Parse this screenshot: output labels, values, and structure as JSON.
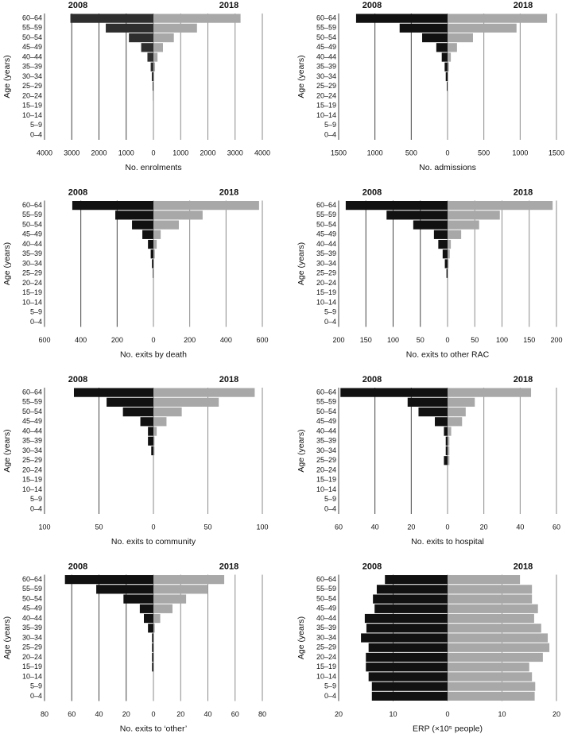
{
  "chart_data": [
    {
      "type": "pyramid",
      "xlabel": "No. enrolments",
      "ylabel": "Age (years)",
      "categories": [
        "60–64",
        "55–59",
        "50–54",
        "45–49",
        "40–44",
        "35–39",
        "30–34",
        "25–29",
        "20–24",
        "15–19",
        "10–14",
        "5–9",
        "0–4"
      ],
      "series": [
        {
          "name": "2008",
          "color": "#2e2e2e",
          "values": [
            3050,
            1750,
            900,
            450,
            220,
            100,
            60,
            30,
            10,
            0,
            0,
            0,
            0
          ]
        },
        {
          "name": "2018",
          "color": "#a8a8a8",
          "values": [
            3200,
            1600,
            750,
            350,
            150,
            60,
            30,
            15,
            5,
            0,
            0,
            0,
            0
          ]
        }
      ],
      "xlim": [
        -4000,
        4000
      ],
      "xticks": [
        {
          "value": -4000,
          "label": "4000"
        },
        {
          "value": -3000,
          "label": "3000"
        },
        {
          "value": -2000,
          "label": "2000"
        },
        {
          "value": -1000,
          "label": "1000"
        },
        0,
        1000,
        2000,
        3000,
        4000
      ],
      "grid": true
    },
    {
      "type": "pyramid",
      "xlabel": "No. admissions",
      "ylabel": "Age (years)",
      "categories": [
        "60–64",
        "55–59",
        "50–54",
        "45–49",
        "40–44",
        "35–39",
        "30–34",
        "25–29",
        "20–24",
        "15–19",
        "10–14",
        "5–9",
        "0–4"
      ],
      "series": [
        {
          "name": "2008",
          "color": "#111111",
          "values": [
            1260,
            660,
            350,
            155,
            80,
            40,
            25,
            10,
            0,
            0,
            0,
            0,
            0
          ]
        },
        {
          "name": "2018",
          "color": "#a8a8a8",
          "values": [
            1370,
            950,
            350,
            130,
            45,
            20,
            10,
            5,
            0,
            0,
            0,
            0,
            0
          ]
        }
      ],
      "xlim": [
        -1500,
        1500
      ],
      "xticks": [
        {
          "value": -1500,
          "label": "1500"
        },
        {
          "value": -1000,
          "label": "1000"
        },
        {
          "value": -500,
          "label": "500"
        },
        0,
        500,
        1000,
        1500
      ],
      "grid": true
    },
    {
      "type": "pyramid",
      "xlabel": "No. exits by death",
      "ylabel": "Age (years)",
      "categories": [
        "60–64",
        "55–59",
        "50–54",
        "45–49",
        "40–44",
        "35–39",
        "30–34",
        "25–29",
        "20–24",
        "15–19",
        "10–14",
        "5–9",
        "0–4"
      ],
      "series": [
        {
          "name": "2008",
          "color": "#111111",
          "values": [
            447,
            210,
            118,
            61,
            30,
            15,
            8,
            3,
            0,
            0,
            0,
            0,
            0
          ]
        },
        {
          "name": "2018",
          "color": "#a8a8a8",
          "values": [
            582,
            271,
            140,
            40,
            18,
            8,
            3,
            0,
            0,
            0,
            0,
            0,
            0
          ]
        }
      ],
      "xlim": [
        -600,
        600
      ],
      "xticks": [
        {
          "value": -600,
          "label": "600"
        },
        {
          "value": -400,
          "label": "400"
        },
        {
          "value": -200,
          "label": "200"
        },
        0,
        200,
        400,
        600
      ],
      "grid": true
    },
    {
      "type": "pyramid",
      "xlabel": "No. exits to other RAC",
      "ylabel": "Age (years)",
      "categories": [
        "60–64",
        "55–59",
        "50–54",
        "45–49",
        "40–44",
        "35–39",
        "30–34",
        "25–29",
        "20–24",
        "15–19",
        "10–14",
        "5–9",
        "0–4"
      ],
      "series": [
        {
          "name": "2008",
          "color": "#111111",
          "values": [
            187,
            112,
            63,
            25,
            17,
            9,
            5,
            2,
            0,
            0,
            0,
            0,
            0
          ]
        },
        {
          "name": "2018",
          "color": "#a8a8a8",
          "values": [
            193,
            96,
            58,
            25,
            6,
            4,
            2,
            0,
            0,
            0,
            0,
            0,
            0
          ]
        }
      ],
      "xlim": [
        -200,
        200
      ],
      "xticks": [
        {
          "value": -200,
          "label": "200"
        },
        {
          "value": -150,
          "label": "150"
        },
        {
          "value": -100,
          "label": "100"
        },
        {
          "value": -50,
          "label": "50"
        },
        0,
        50,
        100,
        150,
        200
      ],
      "grid": true
    },
    {
      "type": "pyramid",
      "xlabel": "No. exits to community",
      "ylabel": "Age (years)",
      "categories": [
        "60–64",
        "55–59",
        "50–54",
        "45–49",
        "40–44",
        "35–39",
        "30–34",
        "25–29",
        "20–24",
        "15–19",
        "10–14",
        "5–9",
        "0–4"
      ],
      "series": [
        {
          "name": "2008",
          "color": "#111111",
          "values": [
            73,
            43,
            28,
            12,
            5,
            5,
            2,
            0,
            0,
            0,
            0,
            0,
            0
          ]
        },
        {
          "name": "2018",
          "color": "#a8a8a8",
          "values": [
            93,
            60,
            26,
            12,
            3,
            1,
            1,
            0,
            0,
            0,
            0,
            0,
            0
          ]
        }
      ],
      "xlim": [
        -100,
        100
      ],
      "xticks": [
        {
          "value": -100,
          "label": "100"
        },
        {
          "value": -50,
          "label": "50"
        },
        0,
        50,
        100
      ],
      "grid": true
    },
    {
      "type": "pyramid",
      "xlabel": "No. exits to hospital",
      "ylabel": "Age (years)",
      "categories": [
        "60–64",
        "55–59",
        "50–54",
        "45–49",
        "40–44",
        "35–39",
        "30–34",
        "25–29",
        "20–24",
        "15–19",
        "10–14",
        "5–9",
        "0–4"
      ],
      "series": [
        {
          "name": "2008",
          "color": "#111111",
          "values": [
            59,
            22,
            16,
            7,
            2,
            1,
            1,
            2,
            0,
            0,
            0,
            0,
            0
          ]
        },
        {
          "name": "2018",
          "color": "#a8a8a8",
          "values": [
            46,
            15,
            10,
            8,
            2,
            1,
            1,
            1,
            0,
            0,
            0,
            0,
            0
          ]
        }
      ],
      "xlim": [
        -60,
        60
      ],
      "xticks": [
        {
          "value": -60,
          "label": "60"
        },
        {
          "value": -40,
          "label": "40"
        },
        {
          "value": -20,
          "label": "20"
        },
        0,
        20,
        40,
        60
      ],
      "grid": true
    },
    {
      "type": "pyramid",
      "xlabel": "No. exits to ‘other’",
      "ylabel": "Age (years)",
      "categories": [
        "60–64",
        "55–59",
        "50–54",
        "45–49",
        "40–44",
        "35–39",
        "30–34",
        "25–29",
        "20–24",
        "15–19",
        "10–14",
        "5–9",
        "0–4"
      ],
      "series": [
        {
          "name": "2008",
          "color": "#111111",
          "values": [
            65,
            42,
            22,
            10,
            7,
            4,
            1,
            1,
            1,
            1,
            0,
            0,
            0
          ]
        },
        {
          "name": "2018",
          "color": "#a8a8a8",
          "values": [
            52,
            40,
            24,
            14,
            5,
            1,
            0,
            0,
            0,
            0,
            0,
            0,
            0
          ]
        }
      ],
      "xlim": [
        -80,
        80
      ],
      "xticks": [
        {
          "value": -80,
          "label": "80"
        },
        {
          "value": -60,
          "label": "60"
        },
        {
          "value": -40,
          "label": "40"
        },
        {
          "value": -20,
          "label": "20"
        },
        0,
        20,
        40,
        60,
        80
      ],
      "grid": true
    },
    {
      "type": "pyramid",
      "xlabel": "ERP (×10⁵ people)",
      "ylabel": "Age (years)",
      "categories": [
        "60–64",
        "55–59",
        "50–54",
        "45–49",
        "40–44",
        "35–39",
        "30–34",
        "25–29",
        "20–24",
        "15–19",
        "10–14",
        "5–9",
        "0–4"
      ],
      "series": [
        {
          "name": "2008",
          "color": "#111111",
          "values": [
            11.5,
            13,
            13.7,
            13.4,
            15.2,
            14.9,
            15.9,
            14.5,
            15,
            15,
            14.5,
            13.9,
            13.9
          ]
        },
        {
          "name": "2018",
          "color": "#a8a8a8",
          "values": [
            13.3,
            15.5,
            15.5,
            16.6,
            15.9,
            17.2,
            18.4,
            18.7,
            17.5,
            15,
            15.5,
            16.1,
            16
          ]
        }
      ],
      "xlim": [
        -20,
        20
      ],
      "xticks": [
        {
          "value": -20,
          "label": "20"
        },
        {
          "value": -10,
          "label": "10"
        },
        0,
        10,
        20
      ],
      "grid": true
    }
  ]
}
